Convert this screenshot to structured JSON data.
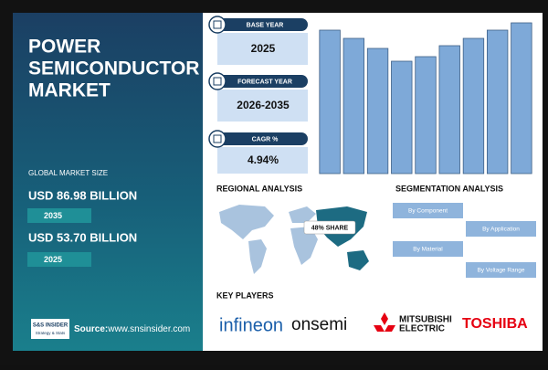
{
  "header": {
    "title": [
      "POWER",
      "SEMICONDUCTOR",
      "MARKET"
    ]
  },
  "market": {
    "label": "GLOBAL MARKET SIZE",
    "forecast_value": "USD 86.98 BILLION",
    "forecast_year": "2035",
    "base_value": "USD 53.70 BILLION",
    "base_year": "2025"
  },
  "source": {
    "brand": "S&S INSIDER",
    "tagline": "Strategy & Stats",
    "label": "Source:",
    "url": "www.snsinsider.com"
  },
  "cards": [
    {
      "label": "BASE YEAR",
      "value": "2025"
    },
    {
      "label": "FORECAST YEAR",
      "value": "2026-2035"
    },
    {
      "label": "CAGR %",
      "value": "4.94%"
    }
  ],
  "bar_chart": {
    "type": "bar",
    "values": [
      15.7,
      14.8,
      13.7,
      12.3,
      12.8,
      14.0,
      14.8,
      15.7,
      16.5
    ],
    "ylim": [
      0,
      16.5
    ],
    "color": "#7ea9d8"
  },
  "regional": {
    "title": "REGIONAL ANALYSIS",
    "share": "48% SHARE"
  },
  "segmentation": {
    "title": "SEGMENTATION ANALYSIS",
    "items": [
      "By Component",
      "By Application",
      "By Material",
      "By Voltage Range"
    ]
  },
  "key_players": {
    "title": "KEY PLAYERS",
    "infineon": "infineon",
    "onsemi": "onsemi",
    "mitsubishi": [
      "MITSUBISHI",
      "ELECTRIC"
    ],
    "toshiba": "TOSHIBA"
  }
}
